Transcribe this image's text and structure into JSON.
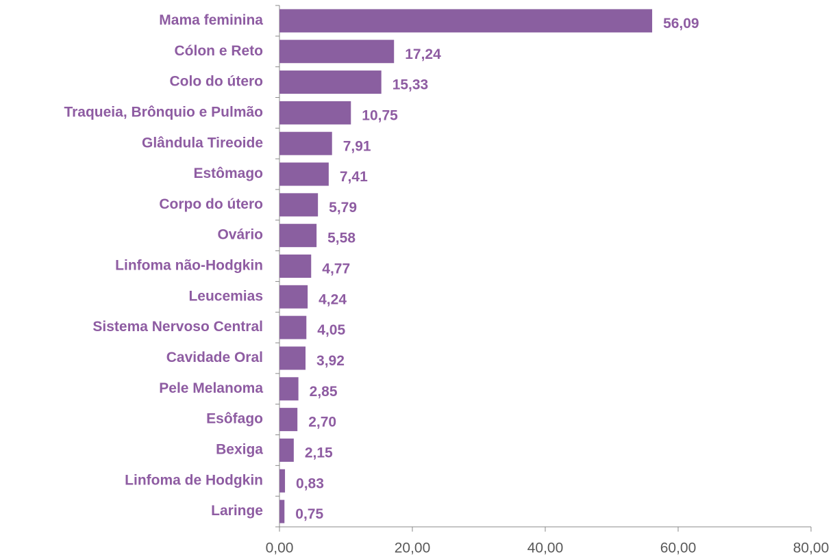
{
  "chart_data": {
    "type": "barh",
    "orientation": "horizontal",
    "categories": [
      "Mama feminina",
      "Cólon e Reto",
      "Colo do útero",
      "Traqueia, Brônquio e Pulmão",
      "Glândula Tireoide",
      "Estômago",
      "Corpo do útero",
      "Ovário",
      "Linfoma não-Hodgkin",
      "Leucemias",
      "Sistema Nervoso Central",
      "Cavidade Oral",
      "Pele Melanoma",
      "Esôfago",
      "Bexiga",
      "Linfoma de Hodgkin",
      "Laringe"
    ],
    "values": [
      56.09,
      17.24,
      15.33,
      10.75,
      7.91,
      7.41,
      5.79,
      5.58,
      4.77,
      4.24,
      4.05,
      3.92,
      2.85,
      2.7,
      2.15,
      0.83,
      0.75
    ],
    "value_labels": [
      "56,09",
      "17,24",
      "15,33",
      "10,75",
      "7,91",
      "7,41",
      "5,79",
      "5,58",
      "4,77",
      "4,24",
      "4,05",
      "3,92",
      "2,85",
      "2,70",
      "2,15",
      "0,83",
      "0,75"
    ],
    "color": "#8a5fa0",
    "xlim": [
      0,
      80
    ],
    "xticks": [
      {
        "value": 0,
        "label": "0,00"
      },
      {
        "value": 20,
        "label": "20,00"
      },
      {
        "value": 40,
        "label": "40,00"
      },
      {
        "value": 60,
        "label": "60,00"
      },
      {
        "value": 80,
        "label": "80,00"
      }
    ],
    "grid": false
  }
}
